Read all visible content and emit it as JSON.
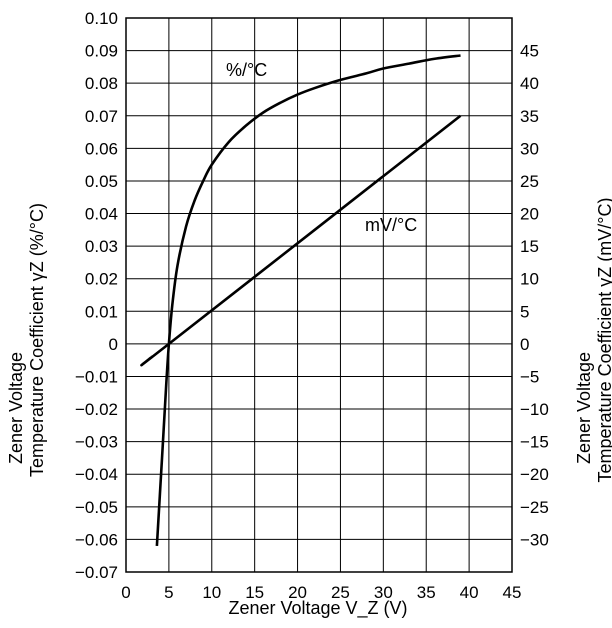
{
  "chart_data": {
    "type": "line",
    "title": "",
    "xlabel": "Zener Voltage V_Z (V)",
    "ylabel_left_line1": "Zener Voltage",
    "ylabel_left_line2": "Temperature Coefficient γZ (%/°C)",
    "ylabel_right_line1": "Zener Voltage",
    "ylabel_right_line2": "Temperature Coefficient γZ (mV/°C)",
    "xlim": [
      0,
      45
    ],
    "ylim_left": [
      -0.07,
      0.1
    ],
    "ylim_right": [
      -35,
      50
    ],
    "grid": true,
    "x_ticks": [
      "0",
      "5",
      "10",
      "15",
      "20",
      "25",
      "30",
      "35",
      "40",
      "45"
    ],
    "y_left_ticks": [
      "0.10",
      "0.09",
      "0.08",
      "0.07",
      "0.06",
      "0.05",
      "0.04",
      "0.03",
      "0.02",
      "0.01",
      "0",
      "−0.01",
      "−0.02",
      "−0.03",
      "−0.04",
      "−0.05",
      "−0.06",
      "−0.07"
    ],
    "y_right_ticks": [
      "45",
      "40",
      "35",
      "30",
      "25",
      "20",
      "15",
      "10",
      "5",
      "0",
      "−5",
      "−10",
      "−15",
      "−20",
      "−25",
      "−30"
    ],
    "series": [
      {
        "name": "%/°C",
        "axis": "left",
        "x": [
          3.6,
          4.2,
          4.7,
          5.0,
          5.4,
          6.0,
          7.0,
          8.0,
          9.0,
          10.0,
          12.0,
          14.0,
          16.0,
          18.0,
          20.0,
          22.0,
          25.0,
          28.0,
          30.0,
          33.0,
          36.0,
          39.0
        ],
        "y": [
          -0.062,
          -0.035,
          -0.012,
          0.0,
          0.012,
          0.024,
          0.036,
          0.044,
          0.05,
          0.055,
          0.062,
          0.067,
          0.071,
          0.074,
          0.0765,
          0.0785,
          0.081,
          0.083,
          0.0845,
          0.086,
          0.0875,
          0.0885
        ]
      },
      {
        "name": "mV/°C",
        "axis": "right",
        "x": [
          3.0,
          5.0,
          39.0
        ],
        "y": [
          -2.0,
          0.0,
          35.0
        ]
      }
    ]
  }
}
